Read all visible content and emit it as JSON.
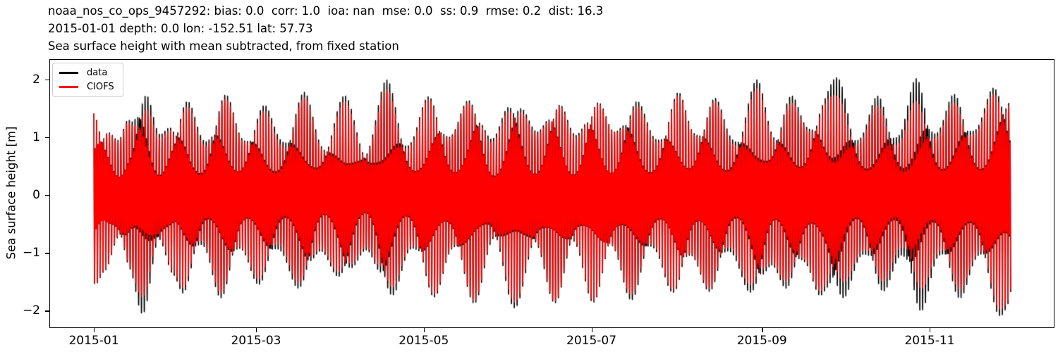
{
  "header": {
    "lines": [
      "noaa_nos_co_ops_9457292: bias: 0.0  corr: 1.0  ioa: nan  mse: 0.0  ss: 0.9  rmse: 0.2  dist: 16.3",
      "2015-01-01 depth: 0.0 lon: -152.51 lat: 57.73",
      "Sea surface height with mean subtracted, from fixed station"
    ]
  },
  "station": {
    "id": "noaa_nos_co_ops_9457292",
    "bias": "0.0",
    "corr": "1.0",
    "ioa": "nan",
    "mse": "0.0",
    "ss": "0.9",
    "rmse": "0.2",
    "dist": "16.3",
    "start_date": "2015-01-01",
    "depth": "0.0",
    "lon": "-152.51",
    "lat": "57.73"
  },
  "chart_data": {
    "type": "line",
    "title": "Sea surface height with mean subtracted, from fixed station",
    "xlabel": "",
    "ylabel": "Sea surface height [m]",
    "grid": false,
    "background": "#ffffff",
    "x_start_date": "2015-01-01",
    "x_tick_labels": [
      "2015-01",
      "2015-03",
      "2015-05",
      "2015-07",
      "2015-09",
      "2015-11"
    ],
    "x_tick_days": [
      0,
      59,
      120,
      181,
      243,
      304
    ],
    "xlim_days": [
      -16.2,
      349.4
    ],
    "y_tick_values": [
      2,
      1,
      0,
      -1,
      -2
    ],
    "y_tick_labels": [
      "2",
      "1",
      "0",
      "−1",
      "−2"
    ],
    "ylim": [
      -2.3,
      2.35
    ],
    "data_span_days": [
      0,
      333.5
    ],
    "legend": {
      "position": "upper left",
      "entries": [
        {
          "label": "data",
          "color": "#000000"
        },
        {
          "label": "CIOFS",
          "color": "#ff0000"
        }
      ]
    },
    "signal_model": {
      "description": "tidal oscillation: sum of semidiurnal and diurnal components, amplitude-modulated by spring-neap envelope",
      "components": [
        {
          "name": "semidiurnal",
          "period_days": 0.517525,
          "weight": 0.66,
          "phase": 0
        },
        {
          "name": "diurnal",
          "period_days": 0.99727,
          "weight": 0.34,
          "phase": 0.9
        }
      ]
    },
    "series": [
      {
        "name": "data",
        "color": "#000000",
        "line_width": 1.6,
        "envelope_day_amp": [
          [
            0,
            1.62
          ],
          [
            4,
            1.32
          ],
          [
            9,
            0.95
          ],
          [
            13,
            1.4
          ],
          [
            18,
            2.08
          ],
          [
            24,
            1.05
          ],
          [
            29,
            1.4
          ],
          [
            33,
            1.78
          ],
          [
            40,
            1.0
          ],
          [
            47,
            1.88
          ],
          [
            54,
            1.05
          ],
          [
            61,
            1.65
          ],
          [
            68,
            1.05
          ],
          [
            76,
            1.82
          ],
          [
            83,
            1.0
          ],
          [
            91,
            1.72
          ],
          [
            99,
            0.95
          ],
          [
            107,
            2.02
          ],
          [
            115,
            1.0
          ],
          [
            123,
            1.85
          ],
          [
            130,
            1.08
          ],
          [
            138,
            1.9
          ],
          [
            145,
            0.98
          ],
          [
            153,
            1.95
          ],
          [
            161,
            1.1
          ],
          [
            168,
            1.88
          ],
          [
            175,
            1.05
          ],
          [
            182,
            1.88
          ],
          [
            189,
            1.12
          ],
          [
            196,
            1.85
          ],
          [
            204,
            1.05
          ],
          [
            212,
            1.85
          ],
          [
            218,
            1.18
          ],
          [
            225,
            1.78
          ],
          [
            232,
            1.08
          ],
          [
            241,
            2.0
          ],
          [
            247,
            1.25
          ],
          [
            253,
            1.78
          ],
          [
            259,
            1.3
          ],
          [
            265,
            1.8
          ],
          [
            271,
            2.05
          ],
          [
            279,
            1.12
          ],
          [
            286,
            1.8
          ],
          [
            293,
            1.15
          ],
          [
            300,
            2.15
          ],
          [
            307,
            1.18
          ],
          [
            314,
            1.88
          ],
          [
            321,
            1.22
          ],
          [
            329,
            2.12
          ],
          [
            333.5,
            1.9
          ]
        ]
      },
      {
        "name": "CIOFS",
        "color": "#ff0000",
        "line_width": 1.5,
        "envelope_day_amp": [
          [
            0,
            1.62
          ],
          [
            4,
            1.3
          ],
          [
            9,
            0.92
          ],
          [
            13,
            1.35
          ],
          [
            18,
            1.78
          ],
          [
            24,
            0.98
          ],
          [
            29,
            1.35
          ],
          [
            33,
            1.68
          ],
          [
            40,
            0.92
          ],
          [
            47,
            1.8
          ],
          [
            54,
            1.02
          ],
          [
            61,
            1.55
          ],
          [
            68,
            0.95
          ],
          [
            76,
            1.72
          ],
          [
            83,
            0.95
          ],
          [
            91,
            1.62
          ],
          [
            99,
            0.9
          ],
          [
            107,
            1.85
          ],
          [
            115,
            0.95
          ],
          [
            123,
            1.8
          ],
          [
            130,
            1.05
          ],
          [
            138,
            1.85
          ],
          [
            145,
            0.92
          ],
          [
            153,
            1.85
          ],
          [
            161,
            1.05
          ],
          [
            168,
            1.85
          ],
          [
            175,
            1.0
          ],
          [
            182,
            1.85
          ],
          [
            189,
            1.1
          ],
          [
            196,
            1.75
          ],
          [
            204,
            1.0
          ],
          [
            212,
            1.8
          ],
          [
            218,
            1.15
          ],
          [
            225,
            1.72
          ],
          [
            232,
            1.0
          ],
          [
            241,
            1.85
          ],
          [
            247,
            1.2
          ],
          [
            253,
            1.65
          ],
          [
            259,
            1.25
          ],
          [
            265,
            1.72
          ],
          [
            271,
            1.72
          ],
          [
            279,
            1.05
          ],
          [
            286,
            1.62
          ],
          [
            293,
            1.0
          ],
          [
            300,
            1.73
          ],
          [
            307,
            1.1
          ],
          [
            314,
            1.72
          ],
          [
            321,
            1.15
          ],
          [
            329,
            2.0
          ],
          [
            333.5,
            1.85
          ]
        ]
      }
    ]
  }
}
